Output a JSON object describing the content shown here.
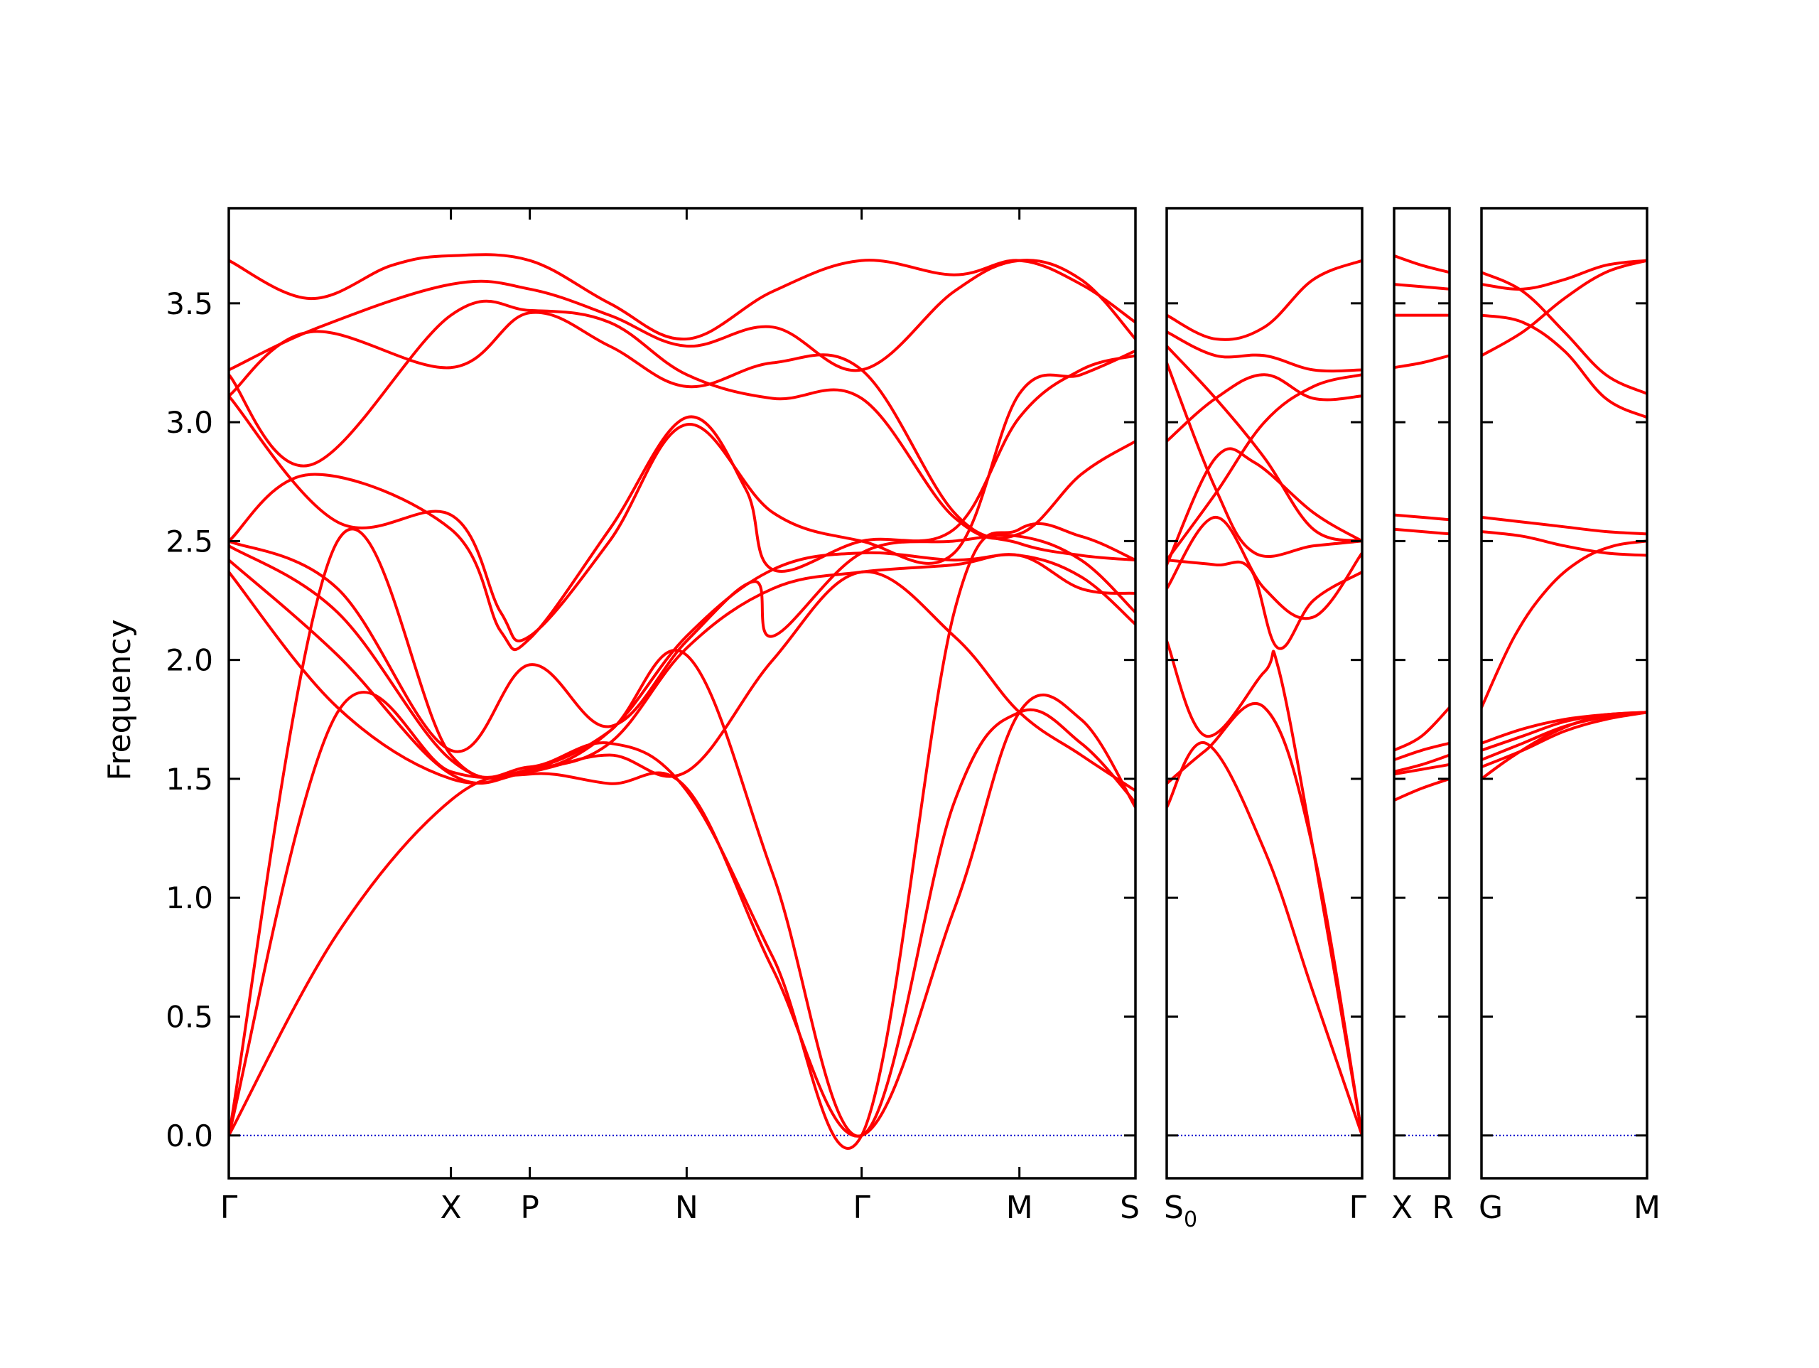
{
  "chart_data": {
    "type": "line",
    "title": "",
    "ylabel": "Frequency",
    "xlabel": "",
    "ylim": [
      -0.18,
      3.9
    ],
    "yticks": [
      0.0,
      0.5,
      1.0,
      1.5,
      2.0,
      2.5,
      3.0,
      3.5
    ],
    "ytick_labels": [
      "0.0",
      "0.5",
      "1.0",
      "1.5",
      "2.0",
      "2.5",
      "3.0",
      "3.5"
    ],
    "zero_line_color": "#0000cc",
    "band_color": "#ff0000",
    "grid": false,
    "legend": "none",
    "panels": [
      {
        "labels": [
          {
            "text": "Γ",
            "sub": "",
            "x": 0.0
          },
          {
            "text": "X",
            "sub": "",
            "x": 0.245
          },
          {
            "text": "P",
            "sub": "",
            "x": 0.332
          },
          {
            "text": "N",
            "sub": "",
            "x": 0.505
          },
          {
            "text": "Γ",
            "sub": "",
            "x": 0.698
          },
          {
            "text": "M",
            "sub": "",
            "x": 0.872
          },
          {
            "text": "S",
            "sub": "",
            "x": 1.0
          }
        ],
        "series": [
          {
            "x": [
              0,
              0.09,
              0.18,
              0.245,
              0.332,
              0.42,
              0.505,
              0.6,
              0.698,
              0.8,
              0.872,
              0.94,
              1.0
            ],
            "y": [
              3.68,
              3.52,
              3.66,
              3.7,
              3.68,
              3.5,
              3.35,
              3.55,
              3.68,
              3.62,
              3.68,
              3.58,
              3.42
            ]
          },
          {
            "x": [
              0,
              0.1,
              0.245,
              0.332,
              0.42,
              0.505,
              0.6,
              0.698,
              0.8,
              0.872,
              0.94,
              1.0
            ],
            "y": [
              3.22,
              3.4,
              3.58,
              3.56,
              3.45,
              3.32,
              3.4,
              3.22,
              3.55,
              3.68,
              3.6,
              3.35
            ]
          },
          {
            "x": [
              0,
              0.09,
              0.245,
              0.332,
              0.42,
              0.505,
              0.6,
              0.698,
              0.8,
              0.872,
              0.94,
              1.0
            ],
            "y": [
              3.2,
              2.82,
              3.45,
              3.47,
              3.42,
              3.2,
              3.1,
              3.1,
              2.6,
              2.53,
              2.78,
              2.92
            ]
          },
          {
            "x": [
              0,
              0.09,
              0.245,
              0.332,
              0.42,
              0.505,
              0.6,
              0.698,
              0.8,
              0.872,
              0.94,
              1.0
            ],
            "y": [
              3.11,
              3.38,
              3.23,
              3.46,
              3.32,
              3.15,
              3.25,
              3.22,
              2.62,
              2.49,
              2.44,
              2.42
            ]
          },
          {
            "x": [
              0,
              0.12,
              0.245,
              0.3,
              0.332,
              0.42,
              0.505,
              0.6,
              0.698,
              0.8,
              0.872,
              0.94,
              1.0
            ],
            "y": [
              3.11,
              2.58,
              2.61,
              2.2,
              2.1,
              2.5,
              2.99,
              2.62,
              2.5,
              2.45,
              3.12,
              3.2,
              3.3
            ]
          },
          {
            "x": [
              0,
              0.09,
              0.245,
              0.3,
              0.332,
              0.42,
              0.505,
              0.57,
              0.6,
              0.698,
              0.8,
              0.872,
              0.94,
              1.0
            ],
            "y": [
              2.5,
              2.78,
              2.55,
              2.12,
              2.09,
              2.55,
              3.02,
              2.72,
              2.38,
              2.5,
              2.55,
              3.02,
              3.22,
              3.28
            ]
          },
          {
            "x": [
              0,
              0.12,
              0.245,
              0.332,
              0.42,
              0.505,
              0.58,
              0.6,
              0.698,
              0.8,
              0.872,
              0.94,
              1.0
            ],
            "y": [
              2.5,
              2.3,
              1.62,
              1.98,
              1.72,
              2.08,
              2.33,
              2.1,
              2.45,
              2.5,
              2.52,
              2.42,
              2.2
            ]
          },
          {
            "x": [
              0,
              0.12,
              0.245,
              0.332,
              0.42,
              0.505,
              0.6,
              0.698,
              0.8,
              0.872,
              0.94,
              1.0
            ],
            "y": [
              2.48,
              2.2,
              1.58,
              1.53,
              1.7,
              2.1,
              2.38,
              2.45,
              2.42,
              2.44,
              2.35,
              2.15
            ]
          },
          {
            "x": [
              0,
              0.12,
              0.245,
              0.332,
              0.42,
              0.505,
              0.6,
              0.698,
              0.8,
              0.872,
              0.94,
              1.0
            ],
            "y": [
              2.42,
              2.02,
              1.52,
              1.54,
              1.65,
              2.05,
              2.3,
              2.37,
              2.4,
              2.44,
              2.3,
              2.28
            ]
          },
          {
            "x": [
              0,
              0.12,
              0.245,
              0.332,
              0.42,
              0.505,
              0.6,
              0.698,
              0.8,
              0.872,
              0.94,
              1.0
            ],
            "y": [
              2.37,
              1.8,
              1.5,
              1.53,
              1.6,
              1.53,
              2.0,
              2.37,
              2.1,
              1.78,
              1.6,
              1.45
            ]
          },
          {
            "x": [
              0,
              0.12,
              0.245,
              0.332,
              0.42,
              0.505,
              0.6,
              0.698,
              0.8,
              0.872,
              0.94,
              1.0
            ],
            "y": [
              0.0,
              1.78,
              1.53,
              1.54,
              1.7,
              2.02,
              1.1,
              0.0,
              1.4,
              1.78,
              1.65,
              1.4
            ]
          },
          {
            "x": [
              0,
              0.12,
              0.245,
              0.332,
              0.42,
              0.505,
              0.6,
              0.698,
              0.8,
              0.872,
              0.94,
              1.0
            ],
            "y": [
              0.0,
              2.5,
              1.6,
              1.55,
              1.65,
              1.45,
              0.75,
              0.0,
              2.2,
              2.55,
              2.52,
              2.42
            ]
          },
          {
            "x": [
              0,
              0.12,
              0.245,
              0.332,
              0.42,
              0.505,
              0.6,
              0.698,
              0.8,
              0.872,
              0.94,
              1.0
            ],
            "y": [
              0.0,
              0.85,
              1.41,
              1.52,
              1.48,
              1.46,
              0.7,
              0.0,
              0.95,
              1.78,
              1.75,
              1.38
            ]
          }
        ]
      },
      {
        "labels": [
          {
            "text": "S",
            "sub": "0",
            "x": 0.0
          },
          {
            "text": "Γ",
            "sub": "",
            "x": 1.0
          }
        ],
        "series": [
          {
            "x": [
              0,
              0.25,
              0.5,
              0.75,
              1.0
            ],
            "y": [
              3.45,
              3.35,
              3.4,
              3.6,
              3.68
            ]
          },
          {
            "x": [
              0,
              0.25,
              0.5,
              0.75,
              1.0
            ],
            "y": [
              3.38,
              3.28,
              3.28,
              3.22,
              3.22
            ]
          },
          {
            "x": [
              0,
              0.25,
              0.5,
              0.75,
              1.0
            ],
            "y": [
              3.32,
              3.1,
              2.85,
              2.55,
              2.5
            ]
          },
          {
            "x": [
              0,
              0.25,
              0.45,
              0.75,
              1.0
            ],
            "y": [
              3.25,
              2.72,
              2.45,
              2.48,
              2.5
            ]
          },
          {
            "x": [
              0,
              0.25,
              0.5,
              0.75,
              1.0
            ],
            "y": [
              2.92,
              3.1,
              3.2,
              3.1,
              3.11
            ]
          },
          {
            "x": [
              0,
              0.25,
              0.5,
              0.75,
              1.0
            ],
            "y": [
              2.42,
              2.7,
              3.0,
              3.15,
              3.2
            ]
          },
          {
            "x": [
              0,
              0.25,
              0.45,
              0.75,
              1.0
            ],
            "y": [
              2.4,
              2.85,
              2.83,
              2.62,
              2.5
            ]
          },
          {
            "x": [
              0,
              0.25,
              0.5,
              0.75,
              1.0
            ],
            "y": [
              2.3,
              2.6,
              2.3,
              2.18,
              2.45
            ]
          },
          {
            "x": [
              0,
              0.25,
              0.43,
              0.57,
              0.75,
              1.0
            ],
            "y": [
              2.42,
              2.4,
              2.38,
              2.05,
              2.25,
              2.37
            ]
          },
          {
            "x": [
              0,
              0.2,
              0.5,
              0.57,
              0.75,
              1.0
            ],
            "y": [
              2.08,
              1.68,
              1.95,
              1.97,
              1.2,
              0.0
            ]
          },
          {
            "x": [
              0,
              0.2,
              0.5,
              0.75,
              1.0
            ],
            "y": [
              1.48,
              1.62,
              1.8,
              1.2,
              0.0
            ]
          },
          {
            "x": [
              0,
              0.2,
              0.5,
              0.75,
              1.0
            ],
            "y": [
              1.38,
              1.65,
              1.2,
              0.6,
              0.0
            ]
          }
        ]
      },
      {
        "labels": [
          {
            "text": "X",
            "sub": "",
            "x": 0.0
          },
          {
            "text": "R",
            "sub": "",
            "x": 1.0
          }
        ],
        "series": [
          {
            "x": [
              0,
              0.5,
              1.0
            ],
            "y": [
              3.7,
              3.66,
              3.63
            ]
          },
          {
            "x": [
              0,
              0.5,
              1.0
            ],
            "y": [
              3.58,
              3.57,
              3.56
            ]
          },
          {
            "x": [
              0,
              0.5,
              1.0
            ],
            "y": [
              3.45,
              3.45,
              3.45
            ]
          },
          {
            "x": [
              0,
              0.5,
              1.0
            ],
            "y": [
              3.23,
              3.25,
              3.28
            ]
          },
          {
            "x": [
              0,
              0.5,
              1.0
            ],
            "y": [
              2.61,
              2.6,
              2.59
            ]
          },
          {
            "x": [
              0,
              0.5,
              1.0
            ],
            "y": [
              2.55,
              2.54,
              2.53
            ]
          },
          {
            "x": [
              0,
              0.5,
              1.0
            ],
            "y": [
              1.62,
              1.68,
              1.8
            ]
          },
          {
            "x": [
              0,
              0.5,
              1.0
            ],
            "y": [
              1.58,
              1.62,
              1.65
            ]
          },
          {
            "x": [
              0,
              0.5,
              1.0
            ],
            "y": [
              1.53,
              1.56,
              1.6
            ]
          },
          {
            "x": [
              0,
              0.5,
              1.0
            ],
            "y": [
              1.52,
              1.54,
              1.56
            ]
          },
          {
            "x": [
              0,
              0.5,
              1.0
            ],
            "y": [
              1.41,
              1.46,
              1.5
            ]
          }
        ]
      },
      {
        "labels": [
          {
            "text": "G",
            "sub": "",
            "x": 0.0
          },
          {
            "text": "M",
            "sub": "",
            "x": 1.0
          }
        ],
        "series": [
          {
            "x": [
              0,
              0.25,
              0.5,
              0.75,
              1.0
            ],
            "y": [
              3.63,
              3.55,
              3.38,
              3.2,
              3.12
            ]
          },
          {
            "x": [
              0,
              0.25,
              0.5,
              0.75,
              1.0
            ],
            "y": [
              3.58,
              3.56,
              3.6,
              3.66,
              3.68
            ]
          },
          {
            "x": [
              0,
              0.25,
              0.5,
              0.75,
              1.0
            ],
            "y": [
              3.45,
              3.42,
              3.3,
              3.1,
              3.02
            ]
          },
          {
            "x": [
              0,
              0.25,
              0.5,
              0.75,
              1.0
            ],
            "y": [
              3.28,
              3.38,
              3.52,
              3.63,
              3.68
            ]
          },
          {
            "x": [
              0,
              0.25,
              0.5,
              0.75,
              1.0
            ],
            "y": [
              2.6,
              2.58,
              2.56,
              2.54,
              2.53
            ]
          },
          {
            "x": [
              0,
              0.25,
              0.5,
              0.75,
              1.0
            ],
            "y": [
              2.54,
              2.52,
              2.48,
              2.45,
              2.44
            ]
          },
          {
            "x": [
              0,
              0.2,
              0.4,
              0.6,
              0.8,
              1.0
            ],
            "y": [
              1.8,
              2.1,
              2.3,
              2.42,
              2.48,
              2.5
            ]
          },
          {
            "x": [
              0,
              0.25,
              0.5,
              0.75,
              1.0
            ],
            "y": [
              1.65,
              1.71,
              1.75,
              1.77,
              1.78
            ]
          },
          {
            "x": [
              0,
              0.25,
              0.5,
              0.75,
              1.0
            ],
            "y": [
              1.62,
              1.68,
              1.74,
              1.77,
              1.78
            ]
          },
          {
            "x": [
              0,
              0.25,
              0.5,
              0.75,
              1.0
            ],
            "y": [
              1.58,
              1.65,
              1.72,
              1.76,
              1.78
            ]
          },
          {
            "x": [
              0,
              0.25,
              0.5,
              0.75,
              1.0
            ],
            "y": [
              1.55,
              1.62,
              1.7,
              1.75,
              1.78
            ]
          },
          {
            "x": [
              0,
              0.2,
              0.45,
              0.7,
              1.0
            ],
            "y": [
              1.5,
              1.6,
              1.7,
              1.76,
              1.78
            ]
          }
        ]
      }
    ]
  }
}
